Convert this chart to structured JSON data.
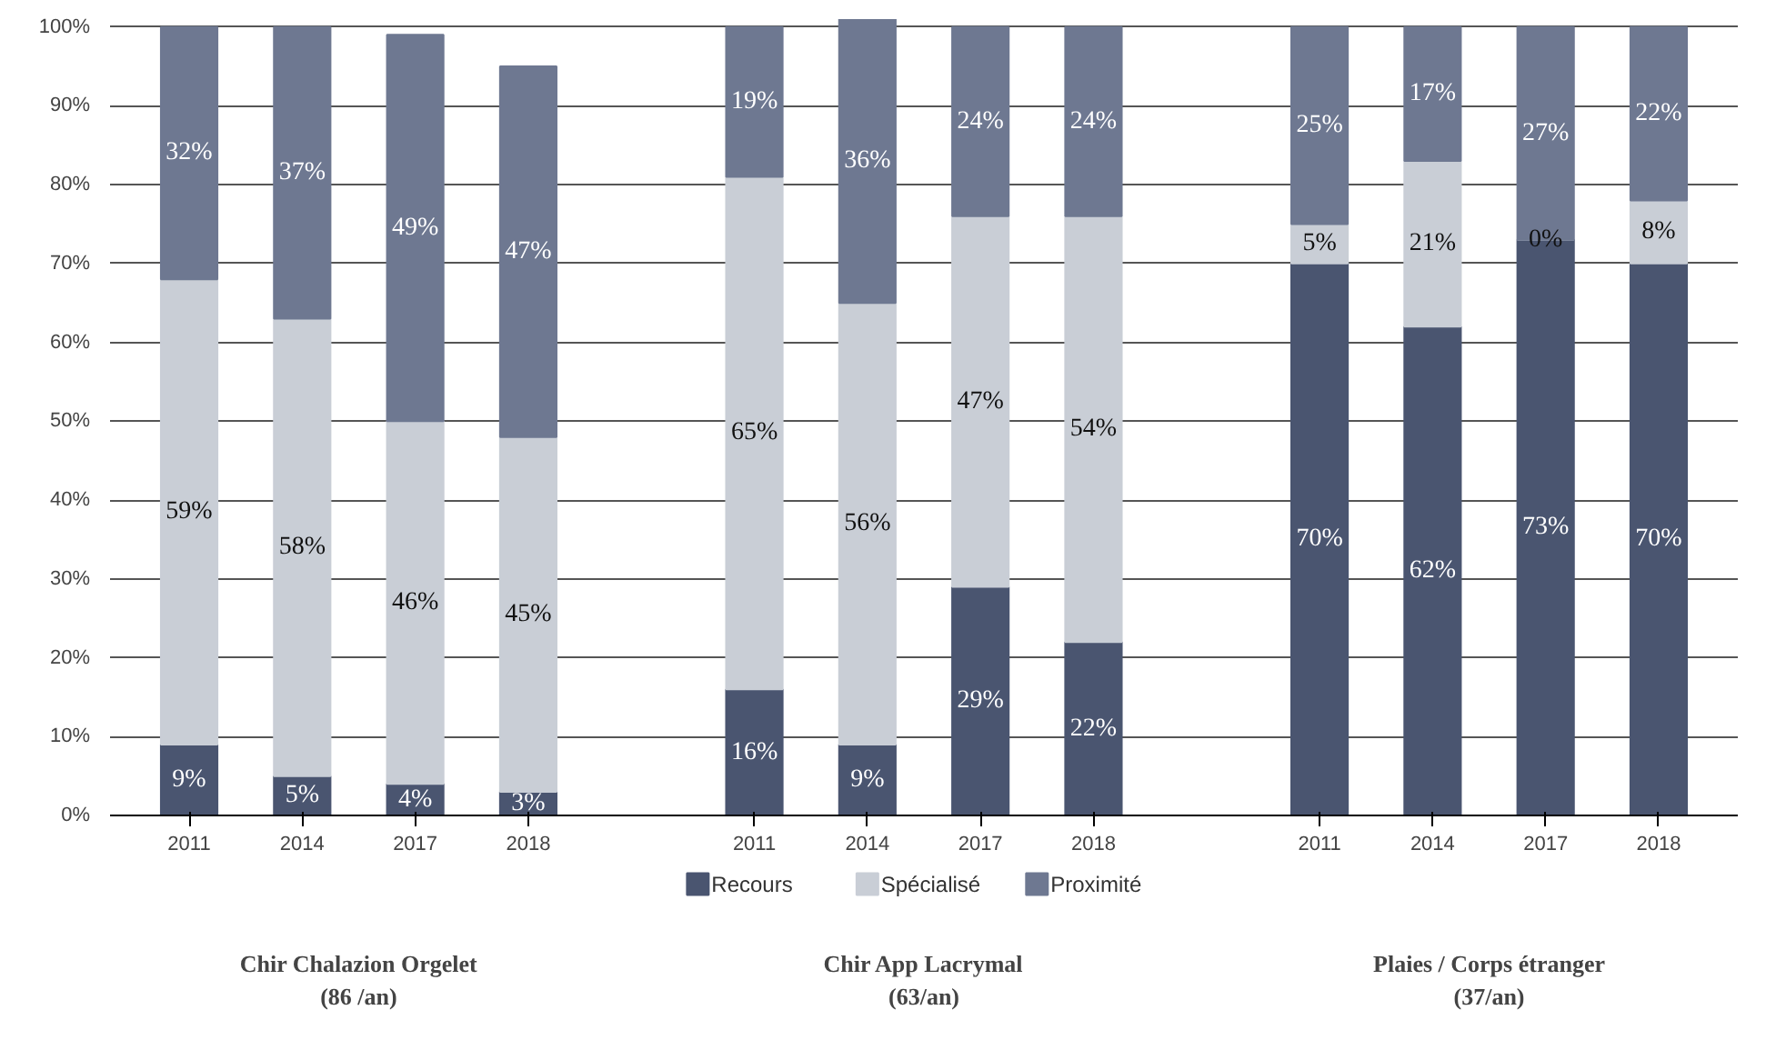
{
  "chart_data": {
    "type": "bar",
    "stacked": true,
    "categories": [
      "2011",
      "2014",
      "2017",
      "2018",
      null,
      "2011",
      "2014",
      "2017",
      "2018",
      null,
      "2011",
      "2014",
      "2017",
      "2018"
    ],
    "series": [
      {
        "name": "Recours",
        "color": "#4a5570",
        "values": [
          9,
          5,
          4,
          3,
          null,
          16,
          9,
          29,
          22,
          null,
          70,
          62,
          73,
          70
        ],
        "value_labels": [
          "9%",
          "5%",
          "4%",
          "3%",
          null,
          "16%",
          "9%",
          "29%",
          "22%",
          null,
          "70%",
          "62%",
          "73%",
          "70%"
        ]
      },
      {
        "name": "Spécialisé",
        "color": "#c9ced6",
        "values": [
          59,
          58,
          46,
          45,
          null,
          65,
          56,
          47,
          54,
          null,
          5,
          21,
          0,
          8
        ],
        "value_labels": [
          "59%",
          "58%",
          "46%",
          "45%",
          null,
          "65%",
          "56%",
          "47%",
          "54%",
          null,
          "5%",
          "21%",
          "0%",
          "8%"
        ]
      },
      {
        "name": "Proximité",
        "color": "#6e7891",
        "values": [
          32,
          37,
          49,
          47,
          null,
          19,
          36,
          24,
          24,
          null,
          25,
          17,
          27,
          22
        ],
        "value_labels": [
          "32%",
          "37%",
          "49%",
          "47%",
          null,
          "19%",
          "36%",
          "24%",
          "24%",
          null,
          "25%",
          "17%",
          "27%",
          "22%"
        ]
      }
    ],
    "ylim": [
      0,
      101
    ],
    "yticks": [
      {
        "value": 0,
        "label": "0%"
      },
      {
        "value": 10,
        "label": "10%"
      },
      {
        "value": 20,
        "label": "20%"
      },
      {
        "value": 30,
        "label": "30%"
      },
      {
        "value": 40,
        "label": "40%"
      },
      {
        "value": 50,
        "label": "50%"
      },
      {
        "value": 60,
        "label": "60%"
      },
      {
        "value": 70,
        "label": "70%"
      },
      {
        "value": 80,
        "label": "80%"
      },
      {
        "value": 90,
        "label": "90%"
      },
      {
        "value": 100,
        "label": "100%"
      }
    ],
    "grid": "y",
    "legend": "bottom",
    "annotations": [
      "Chir Chalazion Orgelet\n(86 /an)",
      "Chir App Lacrymal\n(63/an)",
      "Plaies / Corps étranger\n(37/an)"
    ]
  }
}
